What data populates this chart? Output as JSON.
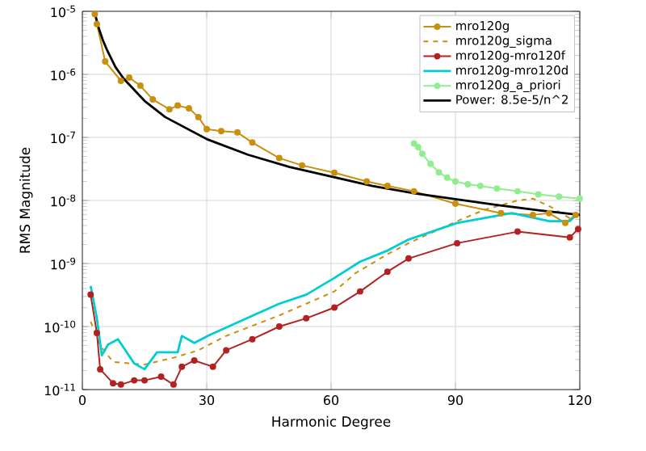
{
  "chart_data": {
    "type": "line",
    "xlabel": "Harmonic Degree",
    "ylabel": "RMS Magnitude",
    "log": "y",
    "grid": true,
    "legend": "top right",
    "xlim": [
      0,
      120
    ],
    "xticks": [
      0,
      30,
      60,
      90,
      120
    ],
    "ylim": [
      1e-11,
      1e-05
    ],
    "yticks": [
      {
        "value": 1e-11,
        "label": "10$^{-11}$"
      },
      {
        "value": 1e-10,
        "label": "10$^{-10}$"
      },
      {
        "value": 1e-09,
        "label": "10$^{-9}$"
      },
      {
        "value": 1e-08,
        "label": "10$^{-8}$"
      },
      {
        "value": 1e-07,
        "label": "10$^{-7}$"
      },
      {
        "value": 1e-06,
        "label": "10$^{-6}$"
      },
      {
        "value": 1e-05,
        "label": "10$^{-5}$"
      }
    ],
    "series": [
      {
        "name": "mro120g",
        "color": "#c8900e",
        "marker": "circle",
        "line_style": "solid",
        "x": [
          3,
          3.5,
          5.5,
          9.3,
          11.3,
          14,
          17,
          21,
          23,
          25.7,
          28,
          30,
          33.5,
          37.4,
          41,
          47.5,
          53,
          60.8,
          68.6,
          73.6,
          80,
          90,
          101,
          108.7,
          112.6,
          116.5,
          119
        ],
        "values": [
          9e-06,
          6.3e-06,
          1.6e-06,
          7.9e-07,
          8.9e-07,
          6.6e-07,
          4e-07,
          2.8e-07,
          3.2e-07,
          2.9e-07,
          2.1e-07,
          1.35e-07,
          1.26e-07,
          1.2e-07,
          8.3e-08,
          4.7e-08,
          3.6e-08,
          2.75e-08,
          2e-08,
          1.7e-08,
          1.4e-08,
          8.9e-09,
          6.3e-09,
          5.9e-09,
          6.3e-09,
          4.4e-09,
          5.9e-09
        ]
      },
      {
        "name": "mro120g_sigma",
        "color": "#c8900e",
        "marker": "none",
        "line_style": "dashed",
        "x": [
          2,
          4.3,
          7.4,
          15,
          22,
          28,
          34.7,
          47.5,
          60.8,
          66,
          73.6,
          78.7,
          90.4,
          97,
          105,
          108.7,
          113,
          117.6,
          120
        ],
        "values": [
          1.2e-10,
          5e-11,
          2.75e-11,
          2.5e-11,
          3.2e-11,
          4.2e-11,
          7.1e-11,
          1.5e-10,
          3.6e-10,
          7.1e-10,
          1.4e-09,
          2.1e-09,
          4.7e-09,
          7.1e-09,
          1e-08,
          1.07e-08,
          7.9e-09,
          5.2e-09,
          6.3e-09
        ]
      },
      {
        "name": "mro120g-mro120f",
        "color": "#b22222",
        "marker": "circle",
        "line_style": "solid",
        "x": [
          2,
          3.5,
          4.3,
          7.4,
          9.3,
          12.5,
          15,
          19,
          22,
          24,
          27,
          31.5,
          34.7,
          41,
          47.5,
          54,
          60.8,
          67,
          73.6,
          78.7,
          90.4,
          105,
          117.6,
          119.6
        ],
        "values": [
          3.2e-10,
          7.9e-11,
          2.1e-11,
          1.26e-11,
          1.2e-11,
          1.4e-11,
          1.4e-11,
          1.6e-11,
          1.2e-11,
          2.3e-11,
          2.9e-11,
          2.3e-11,
          4.2e-11,
          6.3e-11,
          1e-10,
          1.35e-10,
          2e-10,
          3.6e-10,
          7.4e-10,
          1.2e-09,
          2.1e-09,
          3.2e-09,
          2.6e-09,
          3.5e-09
        ]
      },
      {
        "name": "mro120g-mro120d",
        "color": "#00ced1",
        "marker": "none",
        "line_style": "solid",
        "x": [
          2,
          3.5,
          4.7,
          6.2,
          8.6,
          12.5,
          15,
          18,
          23,
          24,
          27,
          30.8,
          38.6,
          47.5,
          54,
          60.8,
          67,
          73.6,
          78.7,
          90.4,
          103.6,
          112.6,
          117.6,
          119.6
        ],
        "values": [
          4.4e-10,
          1.35e-10,
          3.5e-11,
          5.2e-11,
          6.3e-11,
          2.6e-11,
          2.1e-11,
          3.9e-11,
          3.9e-11,
          7.1e-11,
          5.5e-11,
          7.4e-11,
          1.26e-10,
          2.3e-10,
          3.2e-10,
          5.9e-10,
          1.07e-09,
          1.6e-09,
          2.4e-09,
          4.4e-09,
          6.3e-09,
          4.7e-09,
          4.7e-09,
          6.3e-09
        ]
      },
      {
        "name": "mro120g_a_priori",
        "color": "#90ee90",
        "marker": "circle",
        "line_style": "solid",
        "x": [
          80,
          81,
          82,
          84,
          86,
          88,
          90,
          93,
          96,
          100,
          105,
          110,
          115,
          120
        ],
        "values": [
          8e-08,
          7e-08,
          5.5e-08,
          3.8e-08,
          2.8e-08,
          2.3e-08,
          2e-08,
          1.8e-08,
          1.7e-08,
          1.55e-08,
          1.4e-08,
          1.25e-08,
          1.15e-08,
          1.07e-08
        ]
      },
      {
        "name": "Power: 8.5e-5/n^2",
        "color": "#000000",
        "marker": "none",
        "line_style": "solid",
        "x": [
          3,
          4,
          5,
          6,
          8,
          10,
          15,
          20,
          30,
          40,
          50,
          60,
          70,
          80,
          90,
          100,
          110,
          120
        ],
        "values": [
          9.4e-06,
          5.3e-06,
          3.4e-06,
          2.4e-06,
          1.3e-06,
          8.5e-07,
          3.8e-07,
          2.1e-07,
          9.4e-08,
          5.3e-08,
          3.4e-08,
          2.4e-08,
          1.7e-08,
          1.3e-08,
          1.05e-08,
          8.5e-09,
          7e-09,
          5.9e-09
        ]
      }
    ]
  }
}
